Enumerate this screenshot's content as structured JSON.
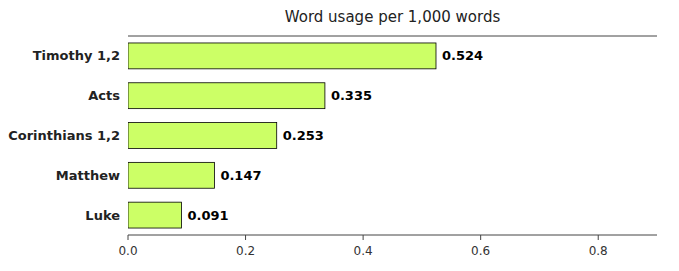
{
  "chart_data": {
    "type": "bar",
    "orientation": "horizontal",
    "title": "Word usage per 1,000 words",
    "categories": [
      "Timothy 1,2",
      "Acts",
      "Corinthians 1,2",
      "Matthew",
      "Luke"
    ],
    "values": [
      0.524,
      0.335,
      0.253,
      0.147,
      0.091
    ],
    "color": "#ccff66",
    "xlim": [
      0.0,
      0.9
    ],
    "xticks": [
      {
        "value": 0.0,
        "label": "0.0"
      },
      0.2,
      0.4,
      0.6,
      0.8
    ],
    "grid": false,
    "data_labels": true
  }
}
